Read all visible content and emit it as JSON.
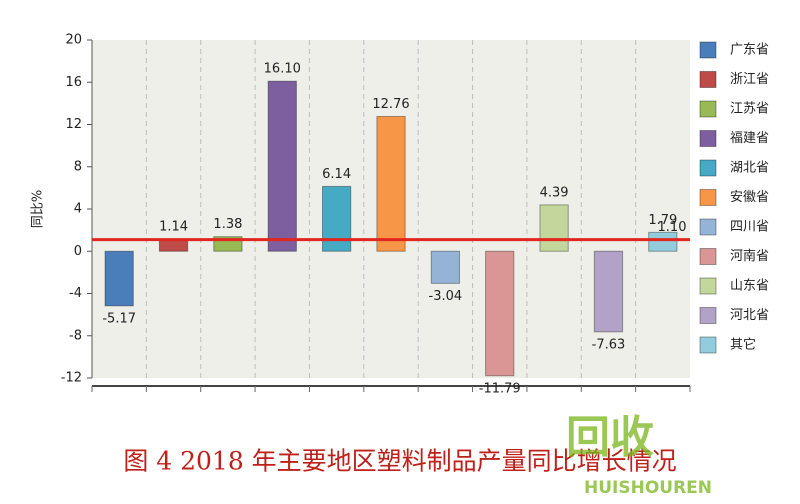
{
  "chart_data": {
    "type": "bar",
    "y_label": "同比%",
    "caption": "图 4 2018 年主要地区塑料制品产量同比增长情况",
    "watermark": [
      "回收",
      "HUISHOUREN"
    ],
    "ylim": [
      -12,
      20
    ],
    "yticks": [
      -12,
      -8,
      -4,
      0,
      4,
      8,
      12,
      16,
      20
    ],
    "grid": true,
    "legend": "right",
    "series": [
      {
        "name": "广东省",
        "color": "#4a7ebb",
        "values": [
          -5.17
        ],
        "value_labels": [
          "-5.17"
        ]
      },
      {
        "name": "浙江省",
        "color": "#be4b48",
        "values": [
          1.14
        ],
        "value_labels": [
          "1.14"
        ]
      },
      {
        "name": "江苏省",
        "color": "#98b954",
        "values": [
          1.38
        ],
        "value_labels": [
          "1.38"
        ]
      },
      {
        "name": "福建省",
        "color": "#7d5fa0",
        "values": [
          16.1
        ],
        "value_labels": [
          "16.10"
        ]
      },
      {
        "name": "湖北省",
        "color": "#46aac5",
        "values": [
          6.14
        ],
        "value_labels": [
          "6.14"
        ]
      },
      {
        "name": "安徽省",
        "color": "#f79646",
        "values": [
          12.76
        ],
        "value_labels": [
          "12.76"
        ]
      },
      {
        "name": "四川省",
        "color": "#95b3d7",
        "values": [
          -3.04
        ],
        "value_labels": [
          "-3.04"
        ]
      },
      {
        "name": "河南省",
        "color": "#d99694",
        "values": [
          -11.79
        ],
        "value_labels": [
          "-11.79"
        ]
      },
      {
        "name": "山东省",
        "color": "#c3d69b",
        "values": [
          4.39
        ],
        "value_labels": [
          "4.39"
        ]
      },
      {
        "name": "河北省",
        "color": "#b3a2c7",
        "values": [
          -7.63
        ],
        "value_labels": [
          "-7.63"
        ]
      },
      {
        "name": "其它",
        "color": "#93cddd",
        "values": [
          1.79
        ],
        "value_labels": [
          "1.79"
        ]
      }
    ],
    "reference_line": {
      "value": 1.1,
      "value_label": "1.10",
      "color": "#e0261e"
    }
  }
}
